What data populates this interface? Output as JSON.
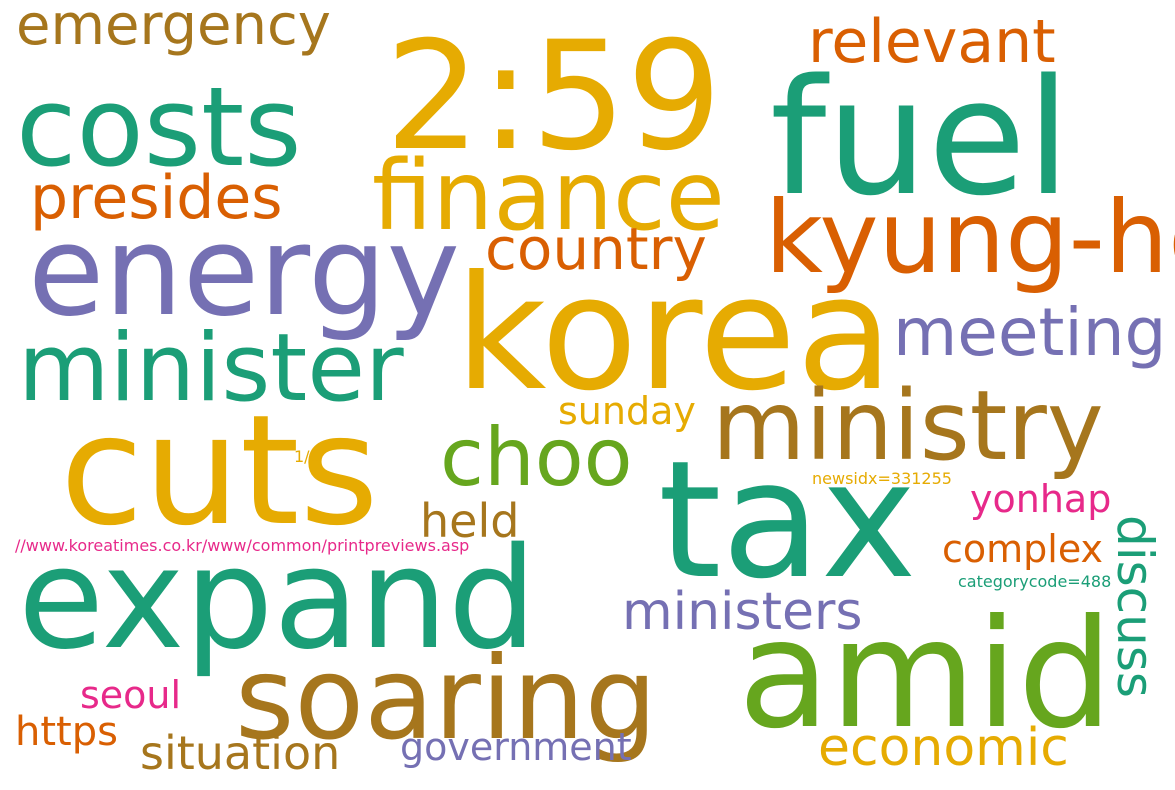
{
  "palette": {
    "teal": "#1b9e77",
    "orange": "#d95f02",
    "purple": "#7570b3",
    "pink": "#e7298a",
    "green": "#66a61e",
    "yellow": "#e6ab02",
    "brown": "#a6761d",
    "background": "#ffffff"
  },
  "words": {
    "emergency": "emergency",
    "t259": "2:59",
    "relevant": "relevant",
    "costs": "costs",
    "fuel": "fuel",
    "finance": "finance",
    "presides": "presides",
    "kyungho": "kyung-ho",
    "country": "country",
    "energy": "energy",
    "korea": "korea",
    "meeting": "meeting",
    "minister": "minister",
    "sunday": "sunday",
    "ministry": "ministry",
    "cuts": "cuts",
    "choo": "choo",
    "p11": "1/1",
    "newsidx": "newsidx=331255",
    "tax": "tax",
    "yonhap": "yonhap",
    "held": "held",
    "url": "//www.koreatimes.co.kr/www/common/printpreviews.asp",
    "complex": "complex",
    "discuss": "discuss",
    "expand": "expand",
    "categorycode": "categorycode=488",
    "ministers": "ministers",
    "amid": "amid",
    "soaring": "soaring",
    "seoul": "seoul",
    "https": "https",
    "government": "government",
    "situation": "situation",
    "economic": "economic"
  }
}
